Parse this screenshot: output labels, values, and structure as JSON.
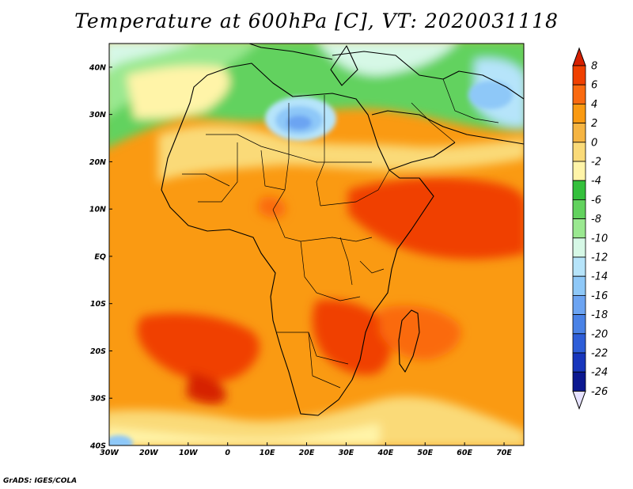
{
  "title": "Temperature at 600hPa [C], VT: 2020031118",
  "credit": "GrADS: IGES/COLA",
  "map": {
    "lon_range": [
      -30,
      75
    ],
    "lat_range": [
      -40,
      45
    ],
    "lon_ticks": [
      {
        "value": -30,
        "label": "30W"
      },
      {
        "value": -20,
        "label": "20W"
      },
      {
        "value": -10,
        "label": "10W"
      },
      {
        "value": 0,
        "label": "0"
      },
      {
        "value": 10,
        "label": "10E"
      },
      {
        "value": 20,
        "label": "20E"
      },
      {
        "value": 30,
        "label": "30E"
      },
      {
        "value": 40,
        "label": "40E"
      },
      {
        "value": 50,
        "label": "50E"
      },
      {
        "value": 60,
        "label": "60E"
      },
      {
        "value": 70,
        "label": "70E"
      }
    ],
    "lat_ticks": [
      {
        "value": 40,
        "label": "40N"
      },
      {
        "value": 30,
        "label": "30N"
      },
      {
        "value": 20,
        "label": "20N"
      },
      {
        "value": 10,
        "label": "10N"
      },
      {
        "value": 0,
        "label": "EQ"
      },
      {
        "value": -10,
        "label": "10S"
      },
      {
        "value": -20,
        "label": "20S"
      },
      {
        "value": -30,
        "label": "30S"
      },
      {
        "value": -40,
        "label": "40S"
      }
    ]
  },
  "colorbar": {
    "labels": [
      "8",
      "6",
      "4",
      "2",
      "0",
      "-2",
      "-4",
      "-6",
      "-8",
      "-10",
      "-12",
      "-14",
      "-16",
      "-18",
      "-20",
      "-22",
      "-24",
      "-26"
    ],
    "colors": [
      "#d62000",
      "#f04000",
      "#fa6a10",
      "#fa9a12",
      "#f5b442",
      "#fada78",
      "#fff4a8",
      "#34c03c",
      "#62d25e",
      "#9ae890",
      "#d6f8e6",
      "#b6e4fa",
      "#8ec8f8",
      "#6ca4f2",
      "#4a82e6",
      "#2e5ed8",
      "#1836bc",
      "#0c1890",
      "#e6e2ff"
    ]
  }
}
